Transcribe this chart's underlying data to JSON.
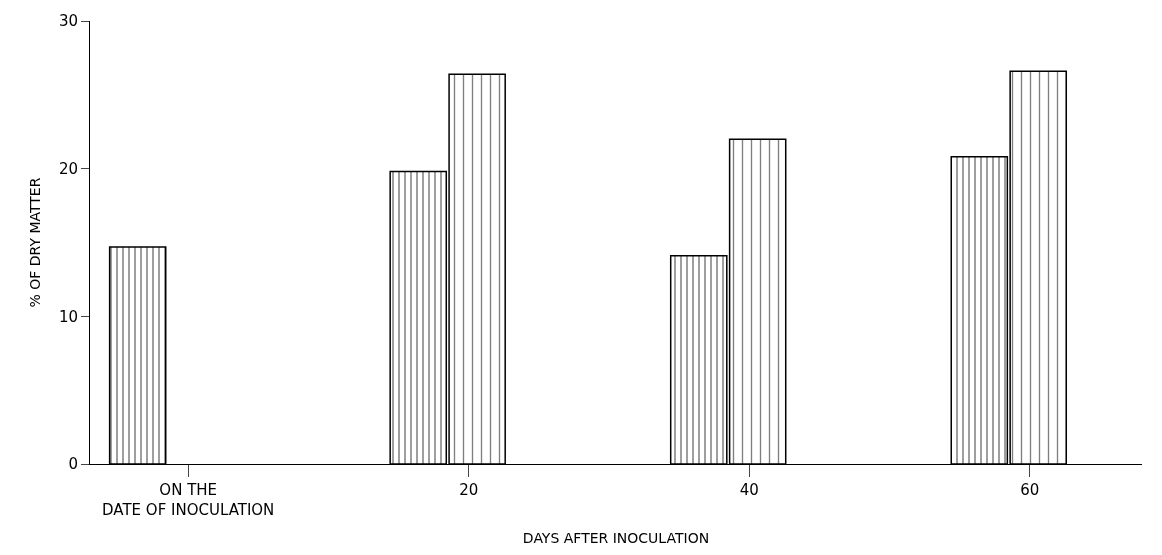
{
  "chart_data": {
    "type": "bar",
    "xlabel": "DAYS AFTER INOCULATION",
    "ylabel": "% OF DRY MATTER",
    "categories": [
      "ON THE\nDATE OF INOCULATION",
      "20",
      "40",
      "60"
    ],
    "series": [
      {
        "color": "#000000",
        "values": [
          14.7,
          19.8,
          14.1,
          20.8
        ]
      },
      {
        "color": "#000000",
        "values": [
          null,
          26.4,
          22.0,
          26.6
        ]
      }
    ],
    "ylim": [
      0,
      30
    ],
    "yticks": [
      0,
      10,
      20,
      30
    ]
  }
}
